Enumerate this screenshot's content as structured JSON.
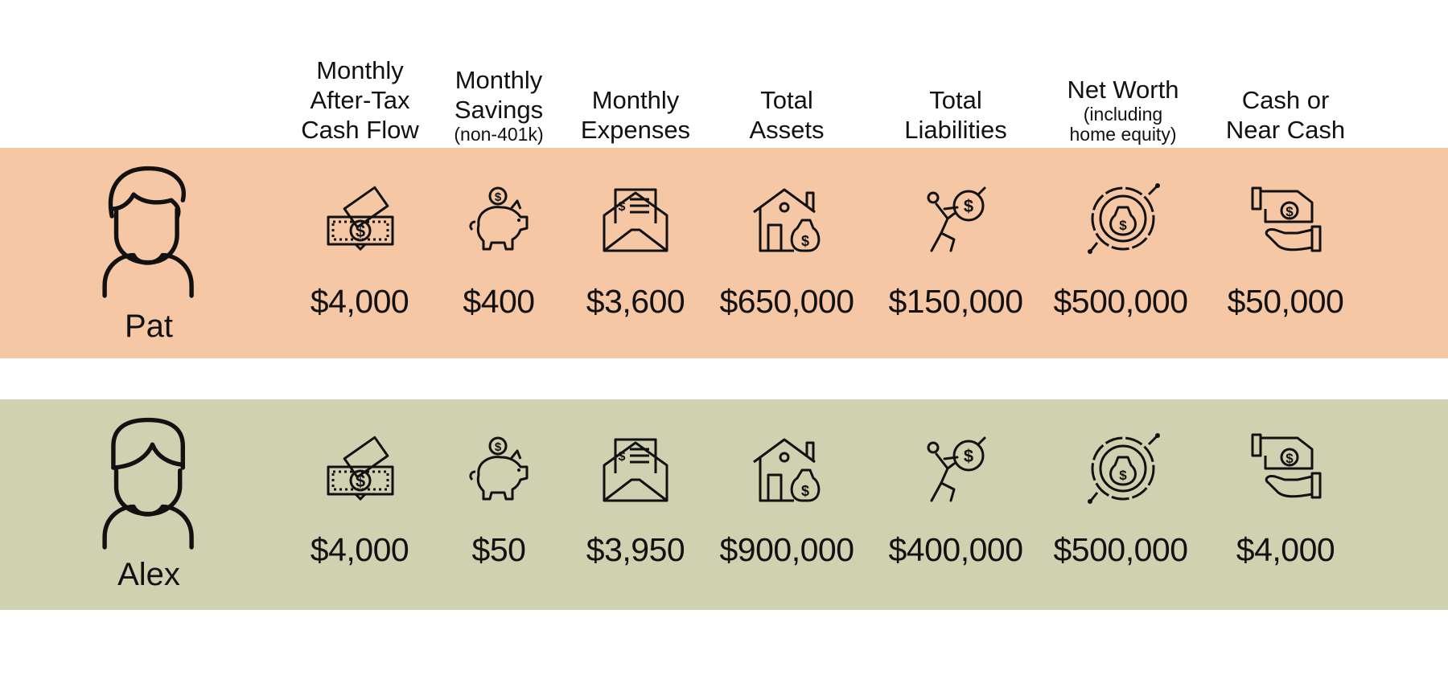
{
  "colors": {
    "pat_band": "#f6c7a5",
    "alex_band": "#d0d1b0"
  },
  "columns": [
    {
      "lines": [
        "Monthly",
        "After-Tax",
        "Cash Flow"
      ],
      "sub": [],
      "icon": "money-bills-icon"
    },
    {
      "lines": [
        "Monthly",
        "Savings"
      ],
      "sub": [
        "(non-401k)"
      ],
      "icon": "piggy-bank-icon"
    },
    {
      "lines": [
        "Monthly",
        "Expenses"
      ],
      "sub": [],
      "icon": "bill-envelope-icon"
    },
    {
      "lines": [
        "Total",
        "Assets"
      ],
      "sub": [],
      "icon": "house-money-bag-icon"
    },
    {
      "lines": [
        "Total",
        "Liabilities"
      ],
      "sub": [],
      "icon": "burden-debt-icon"
    },
    {
      "lines": [
        "Net Worth"
      ],
      "sub": [
        "(including",
        "home equity)"
      ],
      "icon": "net-worth-icon"
    },
    {
      "lines": [
        "Cash or",
        "Near Cash"
      ],
      "sub": [],
      "icon": "cash-in-hand-icon"
    }
  ],
  "people": [
    {
      "name": "Pat",
      "values": [
        "$4,000",
        "$400",
        "$3,600",
        "$650,000",
        "$150,000",
        "$500,000",
        "$50,000"
      ]
    },
    {
      "name": "Alex",
      "values": [
        "$4,000",
        "$50",
        "$3,950",
        "$900,000",
        "$400,000",
        "$500,000",
        "$4,000"
      ]
    }
  ]
}
